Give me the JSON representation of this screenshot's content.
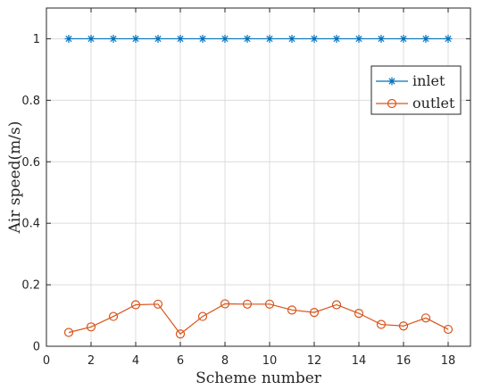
{
  "chart_data": {
    "type": "line",
    "xlabel": "Scheme number",
    "ylabel": "Air speed(m/s)",
    "xlim": [
      0,
      19
    ],
    "ylim": [
      0,
      1.1
    ],
    "x_ticks": [
      0,
      2,
      4,
      6,
      8,
      10,
      12,
      14,
      16,
      18
    ],
    "y_ticks": [
      0,
      0.2,
      0.4,
      0.6,
      0.8,
      1
    ],
    "y_tick_labels": [
      "0",
      "0.2",
      "0.4",
      "0.6",
      "0.8",
      "1"
    ],
    "grid": true,
    "legend_position": "top-right",
    "x": [
      1,
      2,
      3,
      4,
      5,
      6,
      7,
      8,
      9,
      10,
      11,
      12,
      13,
      14,
      15,
      16,
      17,
      18
    ],
    "series": [
      {
        "name": "inlet",
        "color": "#0072BD",
        "marker": "asterisk",
        "values": [
          1,
          1,
          1,
          1,
          1,
          1,
          1,
          1,
          1,
          1,
          1,
          1,
          1,
          1,
          1,
          1,
          1,
          1
        ]
      },
      {
        "name": "outlet",
        "color": "#D95319",
        "marker": "circle",
        "values": [
          0.045,
          0.063,
          0.097,
          0.135,
          0.137,
          0.04,
          0.097,
          0.138,
          0.137,
          0.137,
          0.118,
          0.11,
          0.135,
          0.107,
          0.071,
          0.066,
          0.092,
          0.055
        ]
      }
    ]
  }
}
